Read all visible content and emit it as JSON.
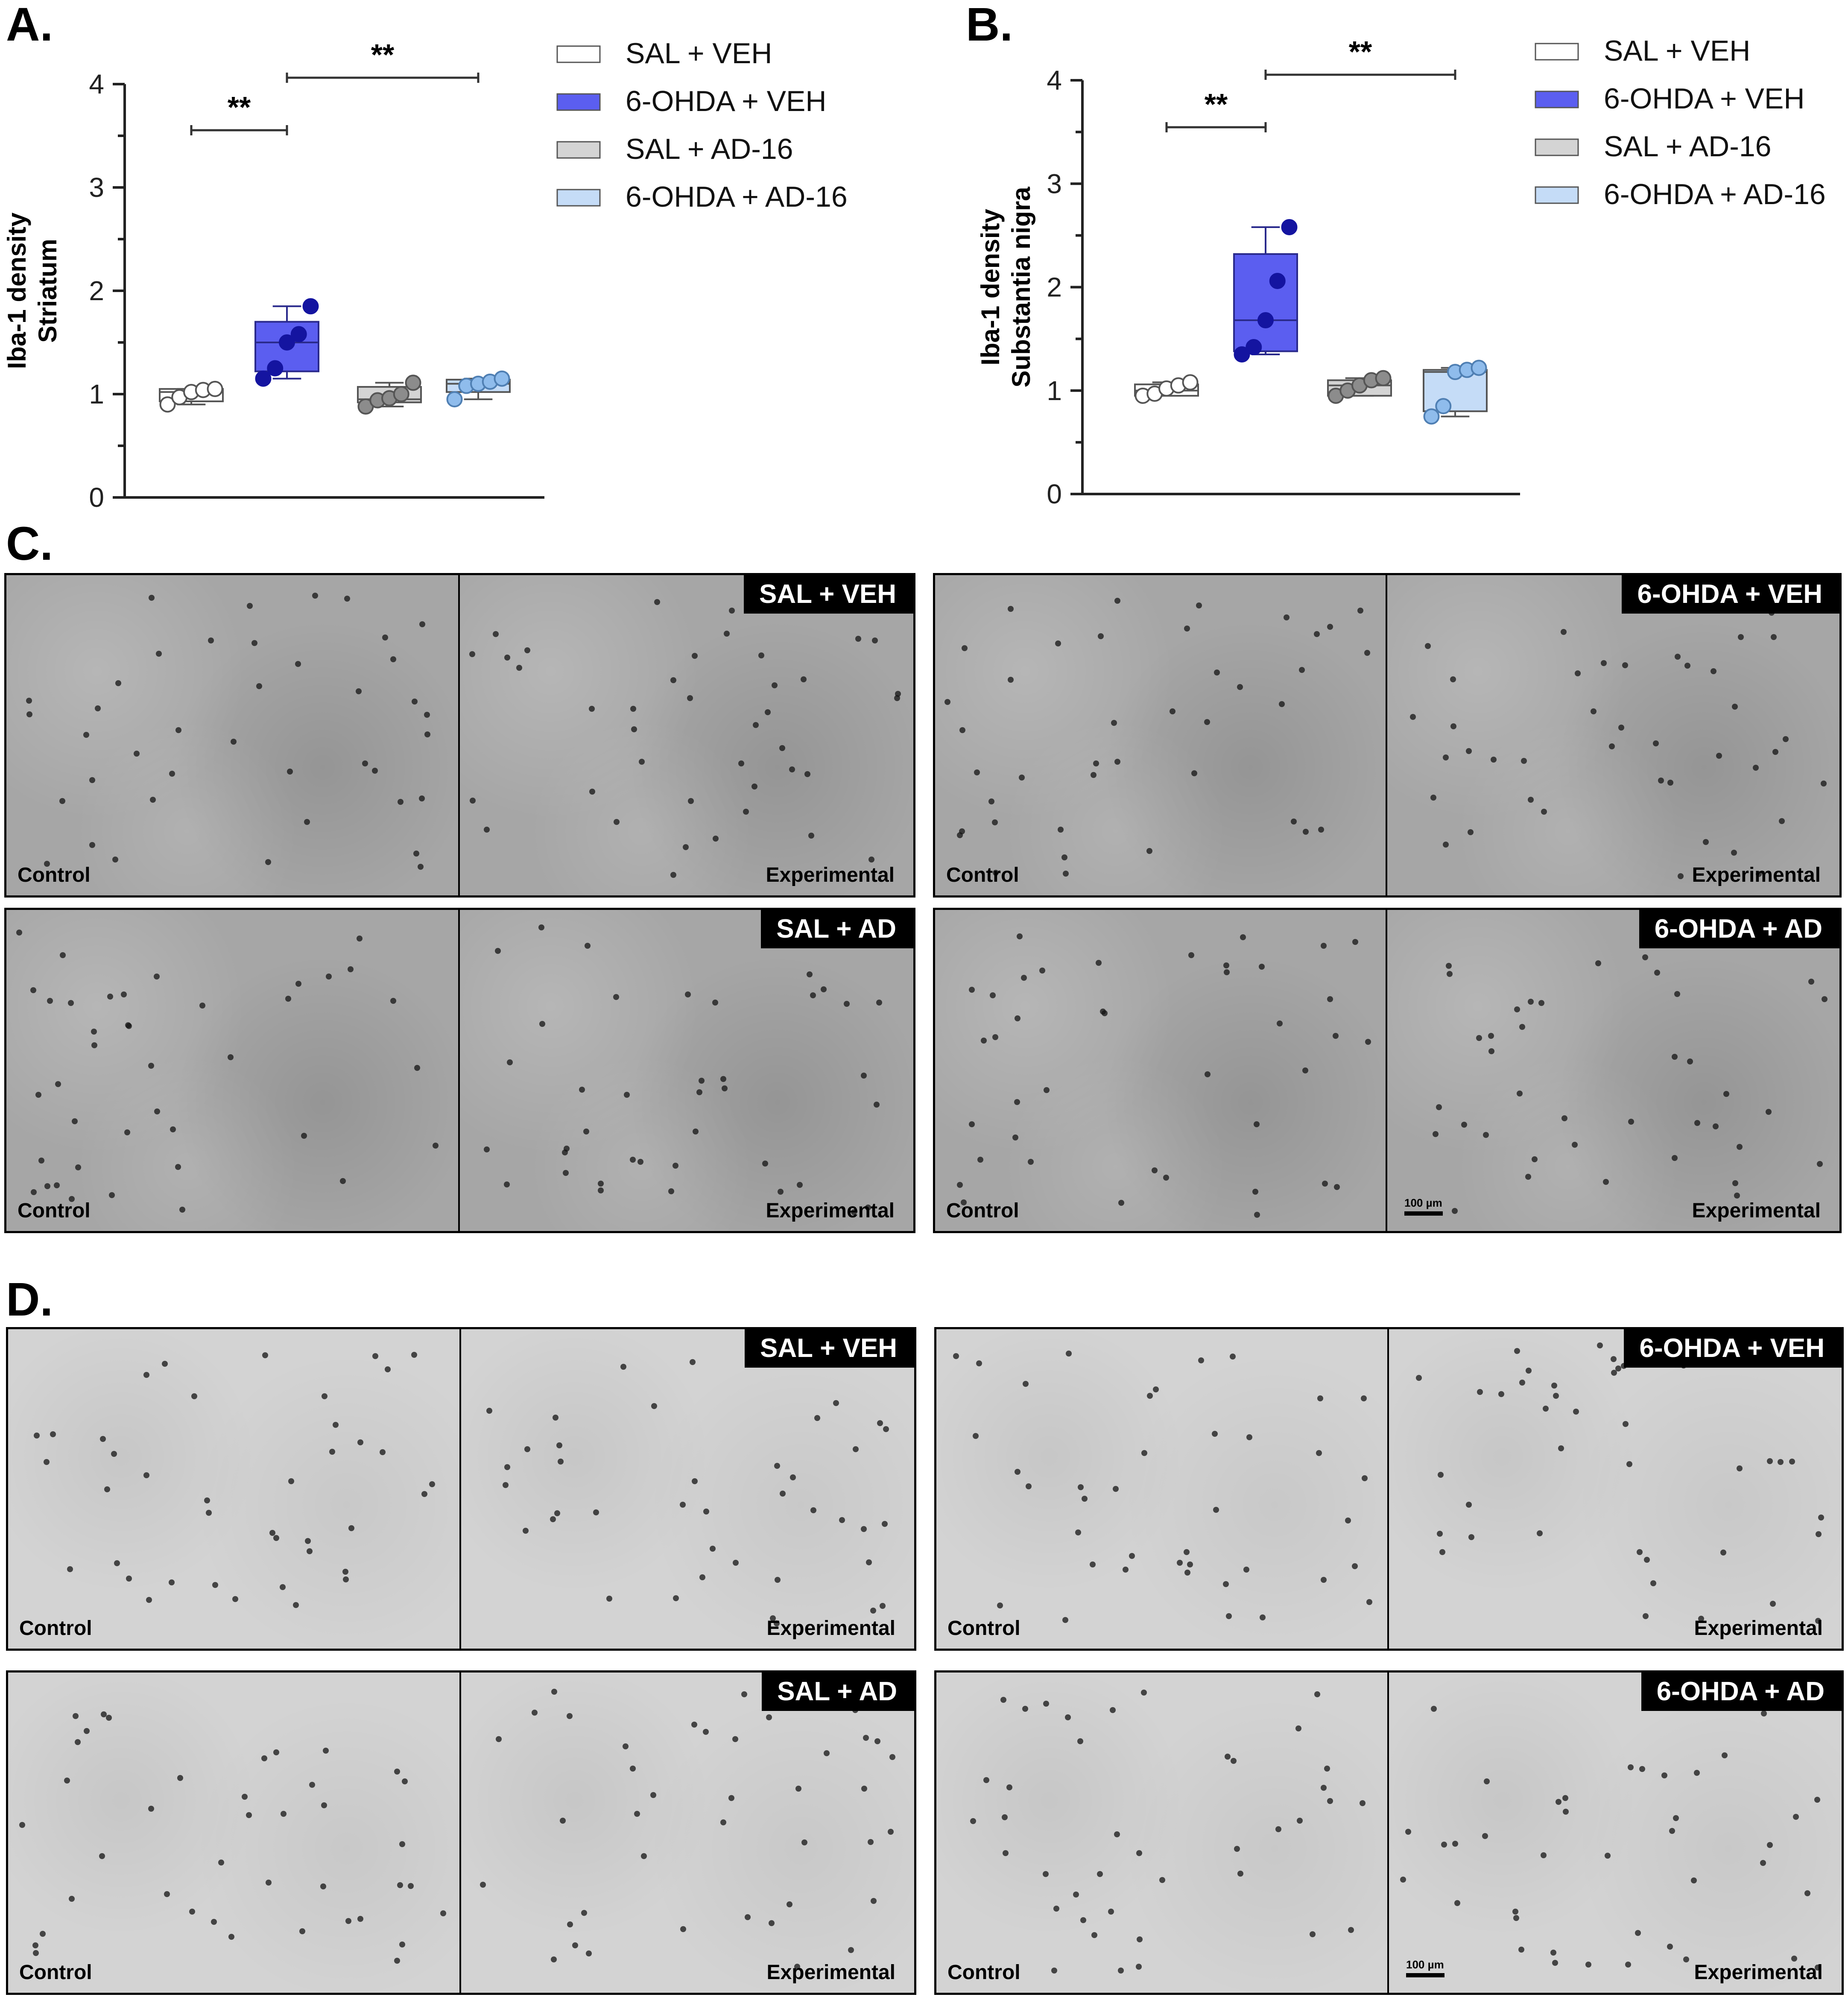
{
  "panels": {
    "A": "A.",
    "B": "B.",
    "C": "C.",
    "D": "D."
  },
  "legend": [
    {
      "label": "SAL + VEH",
      "color": "#ffffff"
    },
    {
      "label": "6-OHDA + VEH",
      "color": "#5b5ef0"
    },
    {
      "label": "SAL + AD-16",
      "color": "#d4d4d4"
    },
    {
      "label": "6-OHDA + AD-16",
      "color": "#c5dcf7"
    }
  ],
  "chart_data": [
    {
      "type": "box",
      "panel": "A.",
      "ylabel_line1": "Iba-1 density",
      "ylabel_line2": "Striatum",
      "ylim": [
        0,
        4
      ],
      "yticks": [
        "0",
        "1",
        "2",
        "3",
        "4"
      ],
      "series": [
        {
          "name": "SAL + VEH",
          "box_fill": "#ffffff",
          "box_stroke": "#555555",
          "point_fill": "#ffffff",
          "point_stroke": "#555555",
          "min": 0.9,
          "q1": 0.93,
          "median": 1.02,
          "q3": 1.05,
          "max": 1.05,
          "points": [
            0.9,
            0.97,
            1.02,
            1.04,
            1.05
          ]
        },
        {
          "name": "6-OHDA + VEH",
          "box_fill": "#5b5ef0",
          "box_stroke": "#2a2a8c",
          "point_fill": "#1414a0",
          "point_stroke": "#1414a0",
          "min": 1.15,
          "q1": 1.22,
          "median": 1.5,
          "q3": 1.7,
          "max": 1.85,
          "points": [
            1.15,
            1.25,
            1.5,
            1.58,
            1.85
          ]
        },
        {
          "name": "SAL + AD-16",
          "box_fill": "#d4d4d4",
          "box_stroke": "#555555",
          "point_fill": "#8c8c8c",
          "point_stroke": "#555555",
          "min": 0.88,
          "q1": 0.92,
          "median": 0.95,
          "q3": 1.07,
          "max": 1.11,
          "points": [
            0.88,
            0.94,
            0.96,
            1.0,
            1.11
          ]
        },
        {
          "name": "6-OHDA + AD-16",
          "box_fill": "#c5dcf7",
          "box_stroke": "#555555",
          "point_fill": "#8fbcec",
          "point_stroke": "#4f7fb3",
          "min": 0.95,
          "q1": 1.02,
          "median": 1.1,
          "q3": 1.14,
          "max": 1.15,
          "points": [
            0.95,
            1.08,
            1.1,
            1.12,
            1.15
          ]
        }
      ],
      "significance": [
        {
          "from": 0,
          "to": 1,
          "y": 3.55,
          "label": "**"
        },
        {
          "from": 1,
          "to": 3,
          "y": 4.05,
          "label": "**"
        }
      ]
    },
    {
      "type": "box",
      "panel": "B.",
      "ylabel_line1": "Iba-1 density",
      "ylabel_line2": "Substantia nigra",
      "ylim": [
        0,
        4
      ],
      "yticks": [
        "0",
        "1",
        "2",
        "3",
        "4"
      ],
      "series": [
        {
          "name": "SAL + VEH",
          "box_fill": "#ffffff",
          "box_stroke": "#555555",
          "point_fill": "#ffffff",
          "point_stroke": "#555555",
          "min": 0.95,
          "q1": 0.95,
          "median": 1.0,
          "q3": 1.06,
          "max": 1.08,
          "points": [
            0.95,
            0.97,
            1.02,
            1.05,
            1.08
          ]
        },
        {
          "name": "6-OHDA + VEH",
          "box_fill": "#5b5ef0",
          "box_stroke": "#2a2a8c",
          "point_fill": "#1414a0",
          "point_stroke": "#1414a0",
          "min": 1.35,
          "q1": 1.38,
          "median": 1.68,
          "q3": 2.32,
          "max": 2.58,
          "points": [
            1.35,
            1.42,
            1.68,
            2.06,
            2.58
          ]
        },
        {
          "name": "SAL + AD-16",
          "box_fill": "#d4d4d4",
          "box_stroke": "#555555",
          "point_fill": "#8c8c8c",
          "point_stroke": "#555555",
          "min": 0.95,
          "q1": 0.95,
          "median": 1.05,
          "q3": 1.1,
          "max": 1.12,
          "points": [
            0.95,
            1.0,
            1.05,
            1.1,
            1.12
          ]
        },
        {
          "name": "6-OHDA + AD-16",
          "box_fill": "#c5dcf7",
          "box_stroke": "#555555",
          "point_fill": "#8fbcec",
          "point_stroke": "#4f7fb3",
          "min": 0.75,
          "q1": 0.8,
          "median": 1.18,
          "q3": 1.2,
          "max": 1.22,
          "points": [
            0.75,
            0.85,
            1.18,
            1.2,
            1.22
          ]
        }
      ],
      "significance": [
        {
          "from": 0,
          "to": 1,
          "y": 3.55,
          "label": "**"
        },
        {
          "from": 1,
          "to": 3,
          "y": 4.05,
          "label": "**"
        }
      ]
    }
  ],
  "micrographs": {
    "C": [
      {
        "group": "SAL + VEH",
        "left": "Control",
        "right": "Experimental",
        "scalebar": ""
      },
      {
        "group": "6-OHDA + VEH",
        "left": "Control",
        "right": "Experimental",
        "scalebar": ""
      },
      {
        "group": "SAL + AD",
        "left": "Control",
        "right": "Experimental",
        "scalebar": ""
      },
      {
        "group": "6-OHDA + AD",
        "left": "Control",
        "right": "Experimental",
        "scalebar": "100 µm"
      }
    ],
    "D": [
      {
        "group": "SAL + VEH",
        "left": "Control",
        "right": "Experimental",
        "scalebar": ""
      },
      {
        "group": "6-OHDA + VEH",
        "left": "Control",
        "right": "Experimental",
        "scalebar": ""
      },
      {
        "group": "SAL + AD",
        "left": "Control",
        "right": "Experimental",
        "scalebar": ""
      },
      {
        "group": "6-OHDA + AD",
        "left": "Control",
        "right": "Experimental",
        "scalebar": "100 µm"
      }
    ]
  }
}
